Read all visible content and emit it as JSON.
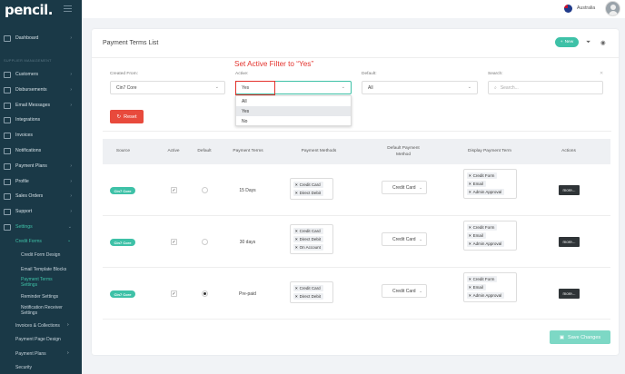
{
  "app": {
    "logo": "pencil."
  },
  "topbar": {
    "country": "Australia"
  },
  "sidebar": {
    "section_label": "SUPPLIER MANAGEMENT",
    "items": [
      {
        "label": "Dashboard",
        "icon": "dashboard-icon"
      },
      {
        "label": "Customers",
        "icon": "customers-icon"
      },
      {
        "label": "Disbursements",
        "icon": "disbursements-icon"
      },
      {
        "label": "Email Messages",
        "icon": "mail-icon"
      },
      {
        "label": "Integrations",
        "icon": "link-icon"
      },
      {
        "label": "Invoices",
        "icon": "invoice-icon"
      },
      {
        "label": "Notifications",
        "icon": "bell-icon"
      },
      {
        "label": "Payment Plans",
        "icon": "plans-icon"
      },
      {
        "label": "Profile",
        "icon": "profile-icon"
      },
      {
        "label": "Sales Orders",
        "icon": "orders-icon"
      },
      {
        "label": "Support",
        "icon": "support-icon"
      },
      {
        "label": "Settings",
        "icon": "gear-icon"
      }
    ],
    "sub": {
      "credit_forms": "Credit Forms",
      "credit_form_design": "Credit Form Design",
      "email_template_blocks": "Email Template Blocks",
      "payment_terms_settings_1": "Payment Terms",
      "payment_terms_settings_2": "Settings",
      "reminder_settings": "Reminder Settings",
      "notification_receiver_settings_1": "Notification Receiver",
      "notification_receiver_settings_2": "Settings",
      "invoices_collections": "Invoices & Collections",
      "payment_page_design": "Payment Page Design",
      "payment_plans": "Payment Plans",
      "security": "Security"
    }
  },
  "page": {
    "title": "Payment Terms List",
    "new_label": "New",
    "annotation": "Set Active Filter to “Yes”",
    "reset_label": "Reset",
    "save_label": "Save Changes"
  },
  "filters": {
    "created_from": {
      "label": "Created From:",
      "value": "Cin7 Core"
    },
    "active": {
      "label": "Active:",
      "value": "Yes",
      "options": [
        "All",
        "Yes",
        "No"
      ]
    },
    "default": {
      "label": "Default:",
      "value": "All"
    },
    "search": {
      "label": "Search:",
      "placeholder": "Search..."
    }
  },
  "table": {
    "headers": {
      "source": "Source",
      "active": "Active",
      "default": "Default",
      "terms": "Payment Terms",
      "methods": "Payment Methods",
      "default_method_1": "Default Payment",
      "default_method_2": "Method",
      "display": "Display Payment Term",
      "actions": "Actions"
    },
    "rows": [
      {
        "source": "Cin7 Core",
        "active": true,
        "default": false,
        "terms": "15 Days",
        "methods": [
          "Credit Card",
          "Direct Debit"
        ],
        "default_method": "Credit Card",
        "display": [
          "Credit Form",
          "Email",
          "Admin Approval"
        ],
        "action": "more..."
      },
      {
        "source": "Cin7 Core",
        "active": true,
        "default": false,
        "terms": "30 days",
        "methods": [
          "Credit Card",
          "Direct Debit",
          "On Account"
        ],
        "default_method": "Credit Card",
        "display": [
          "Credit Form",
          "Email",
          "Admin Approval"
        ],
        "action": "more..."
      },
      {
        "source": "Cin7 Core",
        "active": true,
        "default": true,
        "terms": "Pre-paid",
        "methods": [
          "Credit Card",
          "Direct Debit"
        ],
        "default_method": "Credit Card",
        "display": [
          "Credit Form",
          "Email",
          "Admin Approval"
        ],
        "action": "more..."
      }
    ]
  },
  "colors": {
    "accent": "#3ec1a7",
    "sidebar": "#1a3947",
    "danger": "#e84a3c",
    "annotation": "#e3322c"
  }
}
